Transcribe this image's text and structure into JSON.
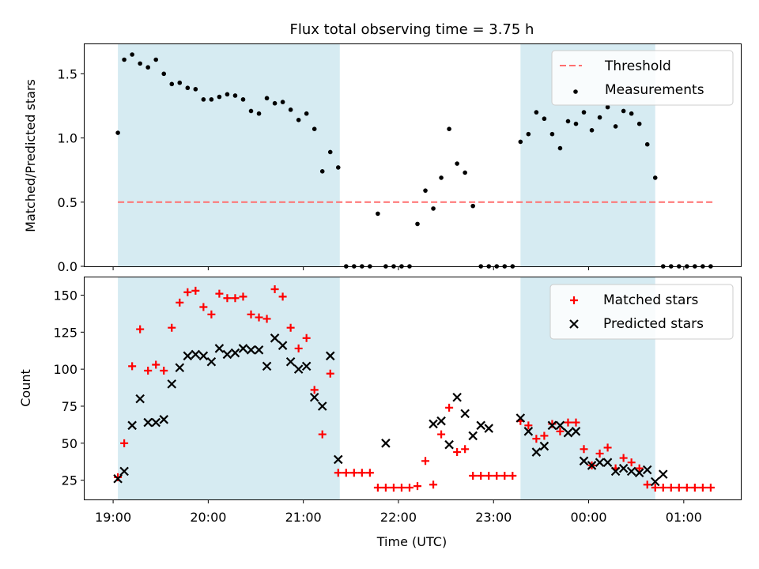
{
  "figure": {
    "title": "Flux total observing time = 3.75 h",
    "xlabel": "Time (UTC)",
    "x_ticks": [
      "19:00",
      "20:00",
      "21:00",
      "22:00",
      "23:00",
      "00:00",
      "01:00"
    ]
  },
  "colors": {
    "shade": "#add8e6",
    "threshold": "#ff6f6f",
    "matched": "#ff0000",
    "predicted": "#000000",
    "measurement": "#000000"
  },
  "chart_data": [
    {
      "type": "scatter",
      "ylabel": "Matched/Predicted stars",
      "xlim_hours": [
        18.7,
        25.6
      ],
      "ylim": [
        0,
        1.73
      ],
      "y_ticks": [
        "0.0",
        "0.5",
        "1.0",
        "1.5"
      ],
      "shaded_intervals": [
        [
          "19:03",
          "21:23"
        ],
        [
          "23:17",
          "00:42"
        ]
      ],
      "legend_position": "upper right",
      "series": [
        {
          "name": "Threshold",
          "style": "dashed-line",
          "x": [
            "19:03",
            "01:19"
          ],
          "y": [
            0.5,
            0.5
          ]
        },
        {
          "name": "Measurements",
          "style": "dot",
          "x": [
            "19:03",
            "19:07",
            "19:12",
            "19:17",
            "19:22",
            "19:27",
            "19:32",
            "19:37",
            "19:42",
            "19:47",
            "19:52",
            "19:57",
            "20:02",
            "20:07",
            "20:12",
            "20:17",
            "20:22",
            "20:27",
            "20:32",
            "20:37",
            "20:42",
            "20:47",
            "20:52",
            "20:57",
            "21:02",
            "21:07",
            "21:12",
            "21:17",
            "21:22",
            "21:27",
            "21:32",
            "21:37",
            "21:42",
            "21:47",
            "21:52",
            "21:57",
            "22:02",
            "22:07",
            "22:12",
            "22:17",
            "22:22",
            "22:27",
            "22:32",
            "22:37",
            "22:42",
            "22:47",
            "22:52",
            "22:57",
            "23:02",
            "23:07",
            "23:12",
            "23:17",
            "23:22",
            "23:27",
            "23:32",
            "23:37",
            "23:42",
            "23:47",
            "23:52",
            "23:57",
            "00:02",
            "00:07",
            "00:12",
            "00:17",
            "00:22",
            "00:27",
            "00:32",
            "00:37",
            "00:42",
            "00:47",
            "00:52",
            "00:57",
            "01:02",
            "01:07",
            "01:12",
            "01:17"
          ],
          "y": [
            1.04,
            1.61,
            1.65,
            1.58,
            1.55,
            1.61,
            1.5,
            1.42,
            1.43,
            1.39,
            1.38,
            1.3,
            1.3,
            1.32,
            1.34,
            1.33,
            1.3,
            1.21,
            1.19,
            1.31,
            1.27,
            1.28,
            1.22,
            1.14,
            1.19,
            1.07,
            0.74,
            0.89,
            0.77,
            0.0,
            0.0,
            0.0,
            0.0,
            0.41,
            0.0,
            0.0,
            0.0,
            0.0,
            0.33,
            0.59,
            0.45,
            0.69,
            1.07,
            0.8,
            0.73,
            0.47,
            0.0,
            0.0,
            0.0,
            0.0,
            0.0,
            0.97,
            1.03,
            1.2,
            1.15,
            1.03,
            0.92,
            1.13,
            1.11,
            1.2,
            1.06,
            1.16,
            1.24,
            1.09,
            1.21,
            1.19,
            1.11,
            0.95,
            0.69,
            0.0,
            0.0,
            0.0,
            0.0,
            0.0,
            0.0,
            0.0
          ]
        }
      ]
    },
    {
      "type": "scatter",
      "ylabel": "Count",
      "xlim_hours": [
        18.7,
        25.6
      ],
      "ylim": [
        12,
        162
      ],
      "y_ticks": [
        "25",
        "50",
        "75",
        "100",
        "125",
        "150"
      ],
      "shaded_intervals": [
        [
          "19:03",
          "21:23"
        ],
        [
          "23:17",
          "00:42"
        ]
      ],
      "legend_position": "upper right",
      "series": [
        {
          "name": "Matched stars",
          "marker": "plus",
          "x": [
            "19:03",
            "19:07",
            "19:12",
            "19:17",
            "19:22",
            "19:27",
            "19:32",
            "19:37",
            "19:42",
            "19:47",
            "19:52",
            "19:57",
            "20:02",
            "20:07",
            "20:12",
            "20:17",
            "20:22",
            "20:27",
            "20:32",
            "20:37",
            "20:42",
            "20:47",
            "20:52",
            "20:57",
            "21:02",
            "21:07",
            "21:12",
            "21:17",
            "21:22",
            "21:27",
            "21:32",
            "21:37",
            "21:42",
            "21:47",
            "21:52",
            "21:57",
            "22:02",
            "22:07",
            "22:12",
            "22:17",
            "22:22",
            "22:27",
            "22:32",
            "22:37",
            "22:42",
            "22:47",
            "22:52",
            "22:57",
            "23:02",
            "23:07",
            "23:12",
            "23:17",
            "23:22",
            "23:27",
            "23:32",
            "23:37",
            "23:42",
            "23:47",
            "23:52",
            "23:57",
            "00:02",
            "00:07",
            "00:12",
            "00:17",
            "00:22",
            "00:27",
            "00:32",
            "00:37",
            "00:42",
            "00:47",
            "00:52",
            "00:57",
            "01:02",
            "01:07",
            "01:12",
            "01:17"
          ],
          "y": [
            27,
            50,
            102,
            127,
            99,
            103,
            99,
            128,
            145,
            152,
            153,
            142,
            137,
            151,
            148,
            148,
            149,
            137,
            135,
            134,
            154,
            149,
            128,
            114,
            121,
            86,
            56,
            97,
            30,
            30,
            30,
            30,
            30,
            20,
            20,
            20,
            20,
            20,
            21,
            38,
            22,
            56,
            74,
            44,
            46,
            28,
            28,
            28,
            28,
            28,
            28,
            65,
            62,
            53,
            55,
            63,
            58,
            64,
            64,
            46,
            35,
            43,
            47,
            33,
            40,
            37,
            33,
            22,
            20,
            20,
            20,
            20,
            20,
            20,
            20,
            20
          ]
        },
        {
          "name": "Predicted stars",
          "marker": "x",
          "x": [
            "19:03",
            "19:07",
            "19:12",
            "19:17",
            "19:22",
            "19:27",
            "19:32",
            "19:37",
            "19:42",
            "19:47",
            "19:52",
            "19:57",
            "20:02",
            "20:07",
            "20:12",
            "20:17",
            "20:22",
            "20:27",
            "20:32",
            "20:37",
            "20:42",
            "20:47",
            "20:52",
            "20:57",
            "21:02",
            "21:07",
            "21:12",
            "21:17",
            "21:22",
            "21:52",
            "22:22",
            "22:27",
            "22:32",
            "22:37",
            "22:42",
            "22:47",
            "22:52",
            "22:57",
            "23:17",
            "23:22",
            "23:27",
            "23:32",
            "23:37",
            "23:42",
            "23:47",
            "23:52",
            "23:57",
            "00:02",
            "00:07",
            "00:12",
            "00:17",
            "00:22",
            "00:27",
            "00:32",
            "00:37",
            "00:42",
            "00:47"
          ],
          "y": [
            26,
            31,
            62,
            80,
            64,
            64,
            66,
            90,
            101,
            109,
            110,
            109,
            105,
            114,
            110,
            111,
            114,
            113,
            113,
            102,
            121,
            116,
            105,
            100,
            102,
            81,
            75,
            109,
            39,
            50,
            63,
            65,
            49,
            81,
            70,
            55,
            62,
            60,
            67,
            58,
            44,
            48,
            62,
            62,
            57,
            58,
            38,
            35,
            37,
            37,
            31,
            33,
            31,
            30,
            32,
            24,
            29
          ]
        }
      ]
    }
  ]
}
